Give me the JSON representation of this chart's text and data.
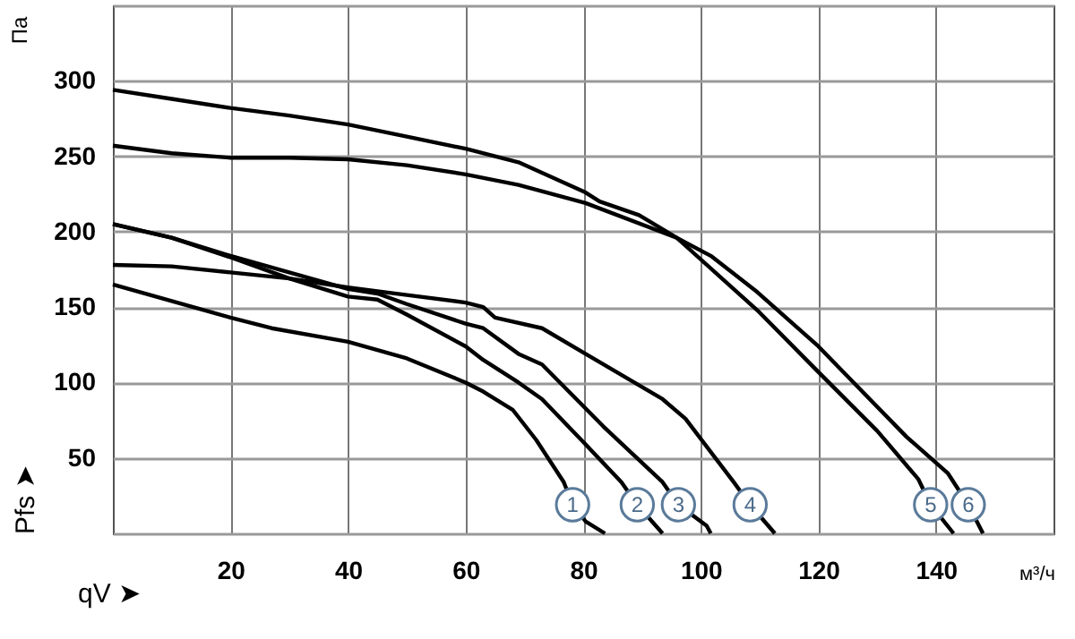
{
  "chart_data": {
    "type": "line",
    "xlabel": "qV ➤",
    "ylabel": "Pfs ➤",
    "xlim": [
      0,
      160
    ],
    "ylim": [
      0,
      350
    ],
    "xticks": [
      {
        "value": 0,
        "label": null
      },
      20,
      40,
      60,
      80,
      100,
      120,
      140,
      {
        "value": 160,
        "label": null
      }
    ],
    "yticks": [
      {
        "value": 0,
        "label": null
      },
      50,
      100,
      150,
      200,
      250,
      300,
      {
        "value": 350,
        "label": null
      }
    ],
    "grid": true,
    "legend": false,
    "marker": "none",
    "line_style": "solid",
    "series": [
      {
        "color": "#000000",
        "x": [
          0,
          10,
          20,
          27,
          40,
          50,
          60,
          63,
          68,
          72,
          76.7,
          78.2,
          80.4,
          83.7
        ],
        "values": [
          165,
          154,
          143,
          136,
          127,
          116,
          100,
          94,
          82,
          62,
          34,
          19,
          8,
          0
        ]
      },
      {
        "color": "#000000",
        "x": [
          0,
          10,
          20,
          30,
          40,
          45,
          50,
          60,
          63,
          69,
          73,
          80.4,
          86.5,
          89.2,
          93.5
        ],
        "values": [
          205,
          196,
          183,
          169,
          157,
          155,
          145,
          124,
          115,
          100,
          89,
          59,
          34,
          19,
          0
        ]
      },
      {
        "color": "#000000",
        "x": [
          0,
          10,
          20,
          30,
          40,
          45,
          50,
          60,
          63,
          69,
          73,
          83.4,
          93.5,
          96.2,
          101,
          101.7
        ],
        "values": [
          205,
          196,
          184,
          173,
          162,
          159,
          152,
          139,
          136,
          119,
          112,
          71,
          34,
          19,
          5,
          0
        ]
      },
      {
        "color": "#000000",
        "x": [
          0,
          10,
          20,
          30,
          40,
          50,
          60,
          63,
          65,
          73,
          80.4,
          93.5,
          97.4,
          105.6,
          108.4,
          112.6
        ],
        "values": [
          178,
          177,
          173,
          169,
          163,
          158,
          153,
          150,
          143,
          136,
          119,
          89,
          76,
          34,
          19,
          0
        ]
      },
      {
        "color": "#000000",
        "x": [
          0,
          10,
          20,
          30,
          40,
          50,
          60,
          69,
          80.4,
          95.9,
          109.6,
          120,
          130,
          137,
          139.1,
          143
        ],
        "values": [
          257,
          252,
          249,
          249,
          248,
          244,
          238,
          231,
          219,
          196,
          148,
          107,
          68,
          36,
          19,
          0
        ]
      },
      {
        "color": "#000000",
        "x": [
          0,
          10,
          20,
          30,
          40,
          50,
          60,
          69,
          80.4,
          82.8,
          89.5,
          95.9,
          101.7,
          109.6,
          120,
          126,
          135,
          142,
          145.5,
          148
        ],
        "values": [
          294,
          288,
          282,
          277,
          271,
          263,
          255,
          246,
          226,
          220,
          211,
          196,
          184,
          160,
          124,
          100,
          64,
          40,
          19,
          0
        ]
      }
    ],
    "annotations": [
      {
        "text": "1",
        "x": 78.2,
        "y": 19
      },
      {
        "text": "2",
        "x": 89.2,
        "y": 19
      },
      {
        "text": "3",
        "x": 96.2,
        "y": 19
      },
      {
        "text": "4",
        "x": 108.4,
        "y": 19
      },
      {
        "text": "5",
        "x": 139.1,
        "y": 19
      },
      {
        "text": "6",
        "x": 145.5,
        "y": 19
      },
      "Па",
      "м³/ч"
    ]
  }
}
